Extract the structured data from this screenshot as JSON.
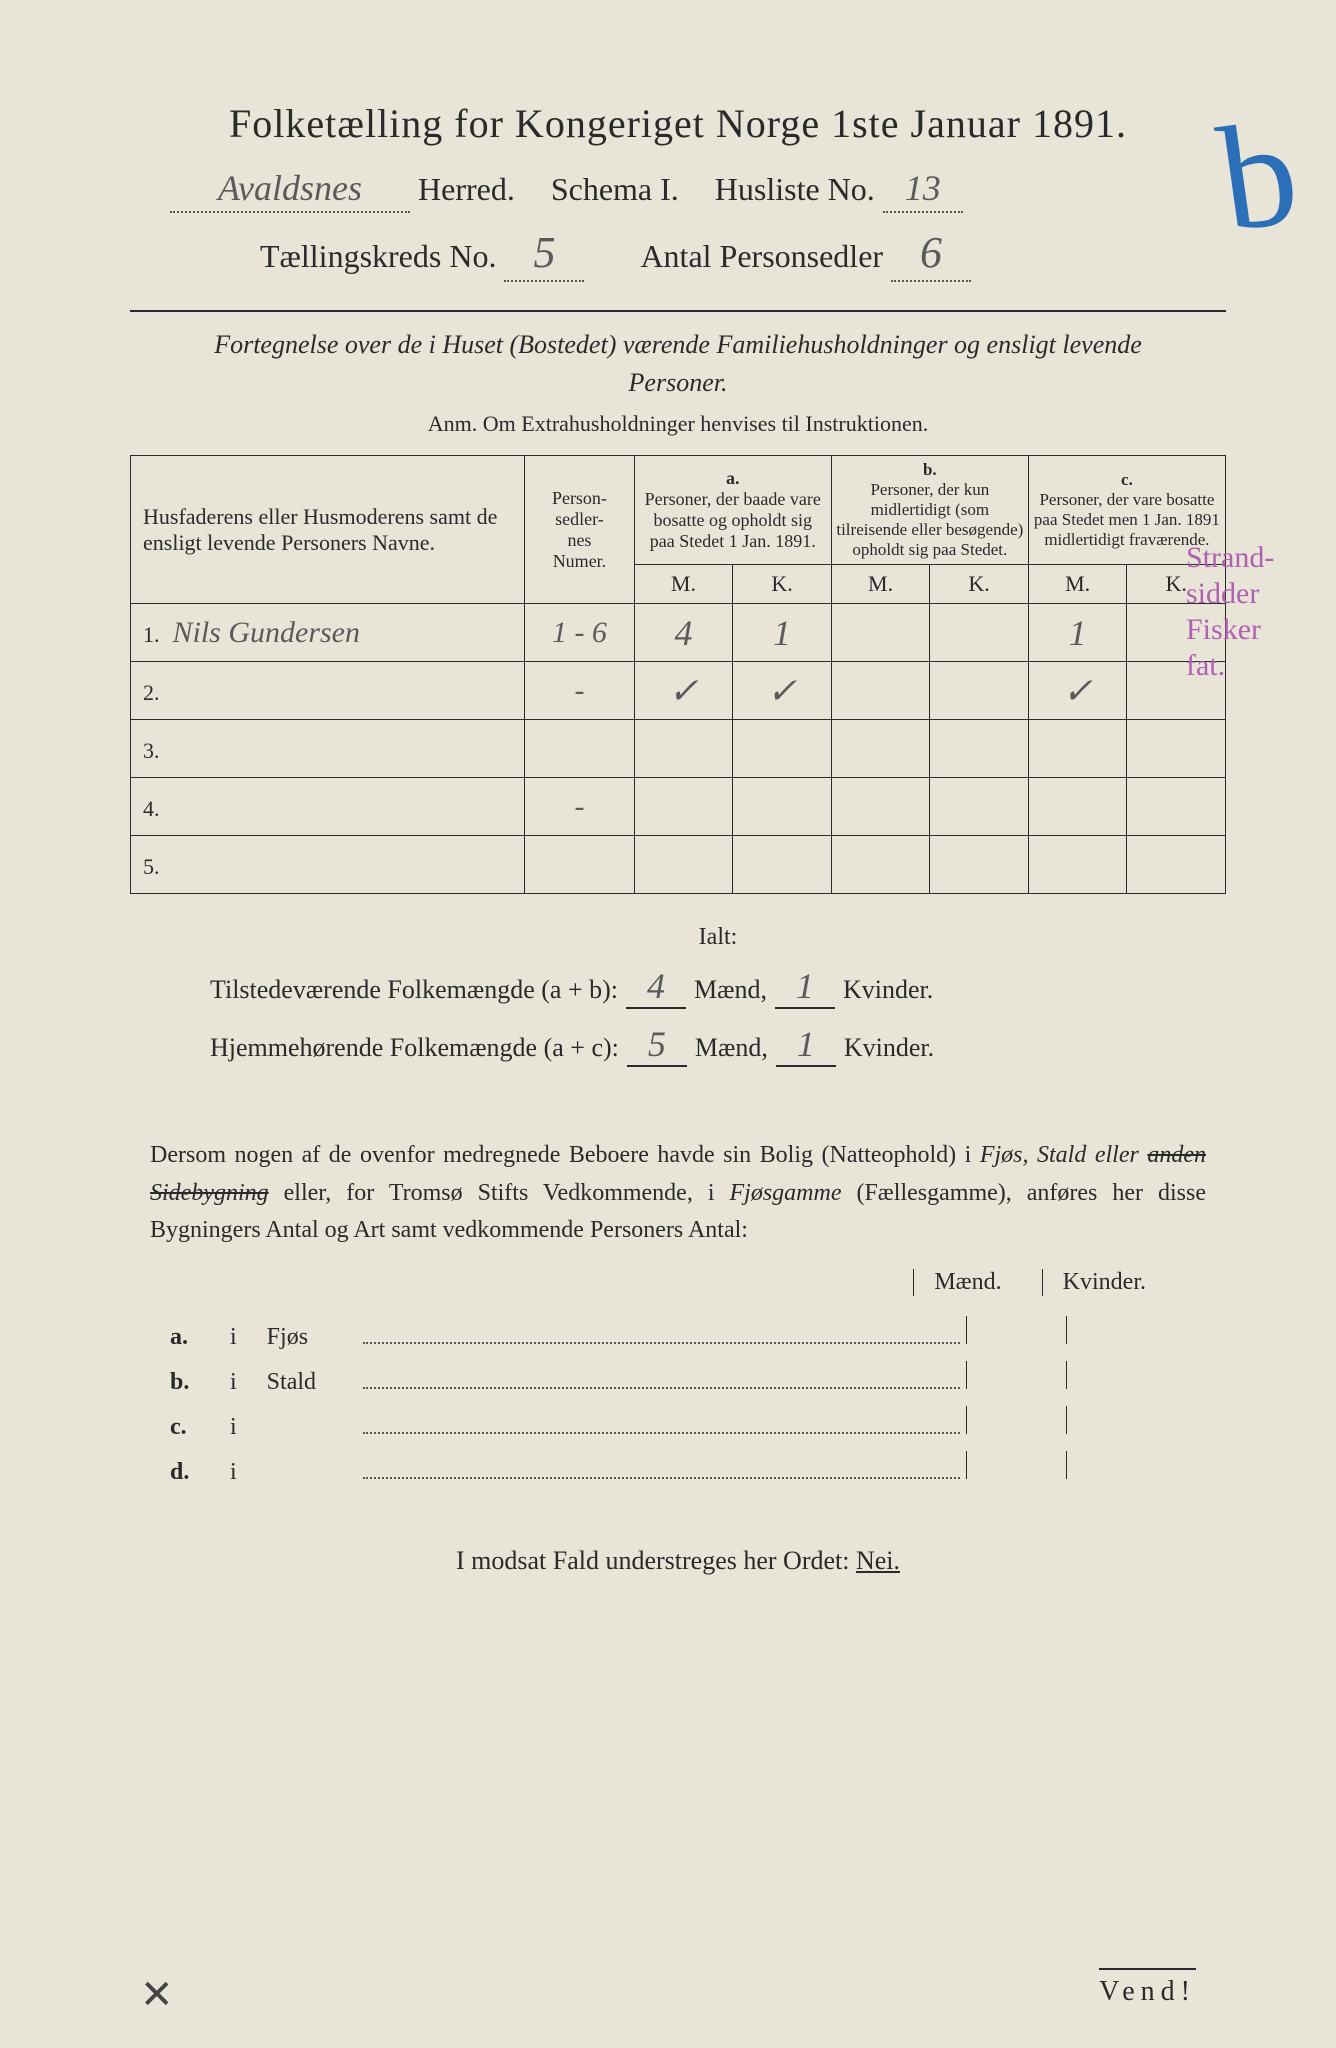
{
  "title": "Folketælling for Kongeriget Norge 1ste Januar 1891.",
  "header": {
    "herred_value": "Avaldsnes",
    "herred_label": "Herred.",
    "schema_label": "Schema I.",
    "husliste_label": "Husliste No.",
    "husliste_value": "13",
    "kreds_label": "Tællingskreds No.",
    "kreds_value": "5",
    "personsedler_label": "Antal Personsedler",
    "personsedler_value": "6"
  },
  "corner_mark": "b",
  "subtitle": "Fortegnelse over de i Huset (Bostedet) værende Familiehusholdninger og ensligt levende Personer.",
  "anm": "Anm. Om Extrahusholdninger henvises til Instruktionen.",
  "columns": {
    "name": "Husfaderens eller Husmoderens samt de ensligt levende Personers Navne.",
    "num": "Person-\nsedler-\nnes\nNumer.",
    "a_label": "a.",
    "a_desc": "Personer, der baade vare bosatte og opholdt sig paa Stedet 1 Jan. 1891.",
    "b_label": "b.",
    "b_desc": "Personer, der kun midlertidigt (som tilreisende eller besøgende) opholdt sig paa Stedet.",
    "c_label": "c.",
    "c_desc": "Personer, der vare bosatte paa Stedet men 1 Jan. 1891 midlertidigt fraværende.",
    "m": "M.",
    "k": "K."
  },
  "rows": [
    {
      "idx": "1.",
      "name": "Nils Gundersen",
      "num": "1 - 6",
      "am": "4",
      "ak": "1",
      "bm": "",
      "bk": "",
      "cm": "1",
      "ck": ""
    },
    {
      "idx": "2.",
      "name": "",
      "num": "-",
      "am": "✓",
      "ak": "✓",
      "bm": "",
      "bk": "",
      "cm": "✓",
      "ck": ""
    },
    {
      "idx": "3.",
      "name": "",
      "num": "",
      "am": "",
      "ak": "",
      "bm": "",
      "bk": "",
      "cm": "",
      "ck": ""
    },
    {
      "idx": "4.",
      "name": "",
      "num": "-",
      "am": "",
      "ak": "",
      "bm": "",
      "bk": "",
      "cm": "",
      "ck": ""
    },
    {
      "idx": "5.",
      "name": "",
      "num": "",
      "am": "",
      "ak": "",
      "bm": "",
      "bk": "",
      "cm": "",
      "ck": ""
    }
  ],
  "margin_notes": [
    "Strand-",
    "sidder",
    "Fisker",
    "fat."
  ],
  "ialt": {
    "title": "Ialt:",
    "line1_label": "Tilstedeværende Folkemængde (a + b):",
    "line1_m": "4",
    "line1_k": "1",
    "line2_label": "Hjemmehørende Folkemængde (a + c):",
    "line2_m": "5",
    "line2_k": "1",
    "maend": "Mænd,",
    "kvinder": "Kvinder."
  },
  "paragraph": {
    "p1": "Dersom nogen af de ovenfor medregnede Beboere havde sin Bolig (Natteophold) i ",
    "em1": "Fjøs, Stald eller ",
    "strike": "anden Sidebygning",
    "p2": " eller, for Tromsø Stifts Vedkommende, i ",
    "em2": "Fjøsgamme",
    "p3": " (Fællesgamme), anføres her disse Bygningers Antal og Art samt vedkommende Personers Antal:"
  },
  "mk": {
    "m": "Mænd.",
    "k": "Kvinder."
  },
  "outbuildings": [
    {
      "lbl": "a.",
      "i": "i",
      "txt": "Fjøs"
    },
    {
      "lbl": "b.",
      "i": "i",
      "txt": "Stald"
    },
    {
      "lbl": "c.",
      "i": "i",
      "txt": ""
    },
    {
      "lbl": "d.",
      "i": "i",
      "txt": ""
    }
  ],
  "modsat": {
    "text": "I modsat Fald understreges her Ordet: ",
    "nei": "Nei."
  },
  "vend": "Vend!",
  "colors": {
    "paper": "#e8e4d8",
    "ink": "#2a2a2a",
    "handwriting": "#5a5a5a",
    "purple_note": "#b060b0",
    "blue_mark": "#2a6fb8"
  }
}
